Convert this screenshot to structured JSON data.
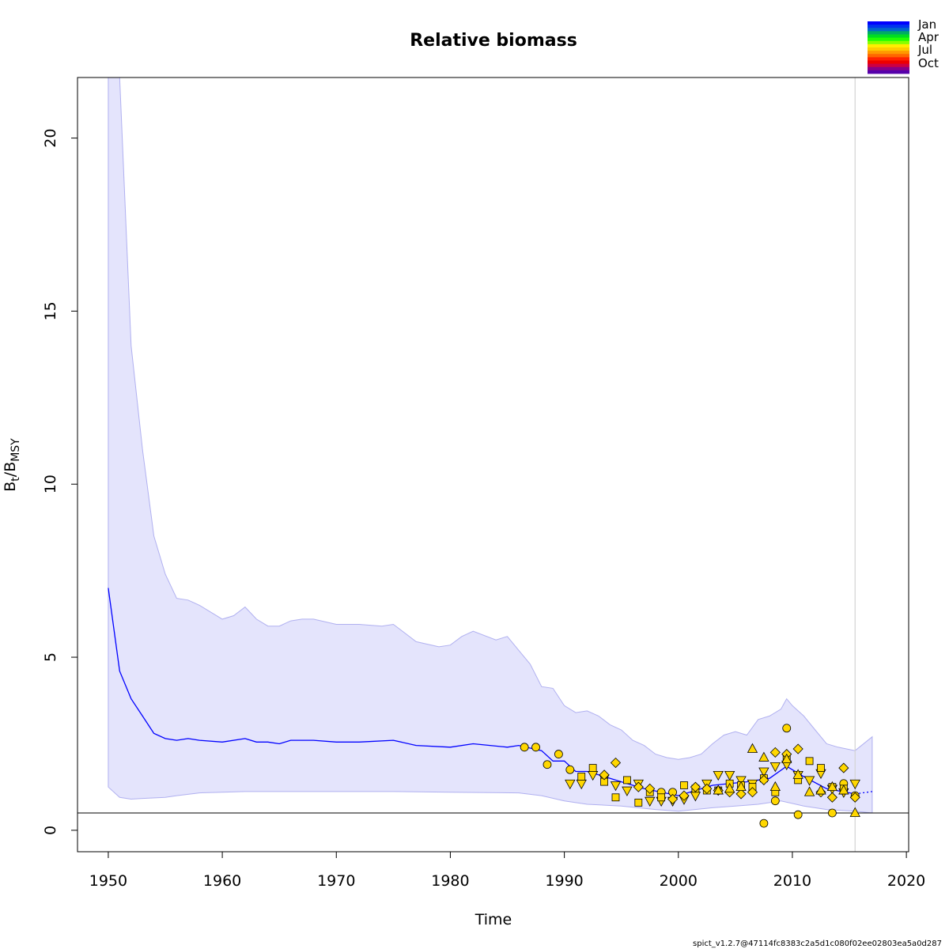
{
  "chart_data": {
    "type": "line",
    "title": "Relative biomass",
    "xlabel": "Time",
    "ylabel": {
      "main": "B",
      "sub1": "t",
      "mid": "/B",
      "sub2": "MSY"
    },
    "xlim": [
      1947.3,
      2020.2
    ],
    "ylim": [
      -0.62,
      21.75
    ],
    "xticks": [
      1950,
      1960,
      1970,
      1980,
      1990,
      2000,
      2010,
      2020
    ],
    "yticks": [
      0,
      5,
      10,
      15,
      20
    ],
    "reference_line_y": 0.5,
    "vertical_line_x": 2015.5,
    "colors": {
      "estimate": "#0000ff",
      "ci_fill": "#e4e4fc",
      "ci_edge": "#b0b0f0",
      "points": "#ffd700",
      "refline": "#000000",
      "vline": "#d3d3d3"
    },
    "estimate": {
      "x": [
        1950,
        1951,
        1952,
        1953,
        1954,
        1955,
        1956,
        1957,
        1958,
        1960,
        1962,
        1963,
        1964,
        1965,
        1966,
        1968,
        1970,
        1972,
        1975,
        1977,
        1980,
        1982,
        1985,
        1986,
        1988,
        1989,
        1990,
        1991,
        1992,
        1993,
        1995,
        1997,
        2000,
        2003,
        2006,
        2008,
        2009.5,
        2011,
        2013,
        2015.5
      ],
      "y": [
        7.0,
        4.6,
        3.8,
        3.3,
        2.8,
        2.65,
        2.6,
        2.65,
        2.6,
        2.55,
        2.65,
        2.55,
        2.55,
        2.5,
        2.6,
        2.6,
        2.55,
        2.55,
        2.6,
        2.45,
        2.4,
        2.5,
        2.4,
        2.45,
        2.3,
        2.0,
        2.0,
        1.7,
        1.7,
        1.6,
        1.4,
        1.2,
        1.0,
        1.3,
        1.4,
        1.5,
        1.85,
        1.55,
        1.2,
        1.05
      ]
    },
    "forecast": {
      "x": [
        2015.5,
        2017
      ],
      "y": [
        1.05,
        1.12
      ]
    },
    "ci_upper": {
      "x": [
        1950,
        1951,
        1952,
        1953,
        1954,
        1955,
        1956,
        1957,
        1958,
        1959,
        1960,
        1961,
        1962,
        1963,
        1964,
        1965,
        1966,
        1967,
        1968,
        1970,
        1972,
        1974,
        1975,
        1976,
        1977,
        1979,
        1980,
        1981,
        1982,
        1984,
        1985,
        1986,
        1987,
        1988,
        1989,
        1990,
        1991,
        1992,
        1993,
        1994,
        1995,
        1996,
        1997,
        1998,
        1999,
        2000,
        2001,
        2002,
        2003,
        2004,
        2005,
        2006,
        2007,
        2008,
        2009,
        2009.5,
        2010,
        2011,
        2012,
        2013,
        2014,
        2015.5,
        2017
      ],
      "y": [
        21.75,
        21.75,
        14.0,
        11.0,
        8.5,
        7.4,
        6.7,
        6.65,
        6.5,
        6.3,
        6.1,
        6.2,
        6.45,
        6.1,
        5.9,
        5.9,
        6.05,
        6.1,
        6.1,
        5.95,
        5.95,
        5.9,
        5.95,
        5.7,
        5.45,
        5.3,
        5.35,
        5.6,
        5.75,
        5.5,
        5.6,
        5.2,
        4.8,
        4.15,
        4.1,
        3.6,
        3.4,
        3.45,
        3.3,
        3.05,
        2.9,
        2.6,
        2.45,
        2.2,
        2.1,
        2.05,
        2.1,
        2.2,
        2.5,
        2.75,
        2.85,
        2.75,
        3.2,
        3.3,
        3.5,
        3.8,
        3.6,
        3.3,
        2.9,
        2.5,
        2.4,
        2.3,
        2.7
      ]
    },
    "ci_lower": {
      "x": [
        1950,
        1951,
        1952,
        1953,
        1955,
        1956,
        1958,
        1960,
        1962,
        1965,
        1970,
        1975,
        1980,
        1986,
        1988,
        1990,
        1992,
        1995,
        1998,
        2000,
        2003,
        2005,
        2007,
        2009,
        2011,
        2013,
        2015.5,
        2017
      ],
      "y": [
        1.25,
        0.95,
        0.9,
        0.92,
        0.95,
        1.0,
        1.08,
        1.1,
        1.12,
        1.12,
        1.12,
        1.12,
        1.1,
        1.08,
        1.0,
        0.85,
        0.75,
        0.7,
        0.6,
        0.55,
        0.65,
        0.7,
        0.75,
        0.85,
        0.7,
        0.6,
        0.55,
        0.5
      ]
    },
    "series": [
      {
        "marker": "circle",
        "points": [
          [
            1986.5,
            2.4
          ],
          [
            1987.5,
            2.4
          ],
          [
            1988.5,
            1.9
          ],
          [
            1989.5,
            2.2
          ],
          [
            1990.5,
            1.75
          ],
          [
            1998.5,
            1.1
          ],
          [
            1999.5,
            1.1
          ],
          [
            2007.5,
            0.2
          ],
          [
            2008.5,
            0.85
          ],
          [
            2009.5,
            2.95
          ],
          [
            2010.5,
            0.45
          ],
          [
            2013.5,
            0.5
          ],
          [
            2014.5,
            1.35
          ],
          [
            2015.5,
            1.0
          ]
        ]
      },
      {
        "marker": "triangle-down",
        "points": [
          [
            1990.5,
            1.35
          ],
          [
            1991.5,
            1.35
          ],
          [
            1992.5,
            1.6
          ],
          [
            1993.5,
            1.5
          ],
          [
            1994.5,
            1.3
          ],
          [
            1995.5,
            1.15
          ],
          [
            1996.5,
            1.35
          ],
          [
            1997.5,
            0.85
          ],
          [
            1998.5,
            0.85
          ],
          [
            1999.5,
            0.85
          ],
          [
            2000.5,
            0.9
          ],
          [
            2001.5,
            1.0
          ],
          [
            2002.5,
            1.35
          ],
          [
            2003.5,
            1.6
          ],
          [
            2004.5,
            1.6
          ],
          [
            2005.5,
            1.45
          ],
          [
            2006.5,
            1.35
          ],
          [
            2007.5,
            1.7
          ],
          [
            2008.5,
            1.85
          ],
          [
            2009.5,
            1.9
          ],
          [
            2010.5,
            1.6
          ],
          [
            2011.5,
            1.45
          ],
          [
            2012.5,
            1.65
          ],
          [
            2013.5,
            1.2
          ],
          [
            2014.5,
            1.1
          ],
          [
            2015.5,
            1.35
          ]
        ]
      },
      {
        "marker": "square",
        "points": [
          [
            1991.5,
            1.55
          ],
          [
            1992.5,
            1.8
          ],
          [
            1993.5,
            1.4
          ],
          [
            1994.5,
            0.95
          ],
          [
            1995.5,
            1.45
          ],
          [
            1996.5,
            0.8
          ],
          [
            1997.5,
            1.1
          ],
          [
            1998.5,
            0.95
          ],
          [
            2000.5,
            1.3
          ],
          [
            2001.5,
            1.2
          ],
          [
            2002.5,
            1.15
          ],
          [
            2003.5,
            1.15
          ],
          [
            2004.5,
            1.35
          ],
          [
            2005.5,
            1.3
          ],
          [
            2006.5,
            1.25
          ],
          [
            2007.5,
            1.5
          ],
          [
            2008.5,
            1.1
          ],
          [
            2009.5,
            2.1
          ],
          [
            2010.5,
            1.45
          ],
          [
            2011.5,
            2.0
          ],
          [
            2012.5,
            1.8
          ],
          [
            2013.5,
            1.25
          ],
          [
            2014.5,
            1.2
          ]
        ]
      },
      {
        "marker": "diamond",
        "points": [
          [
            1993.5,
            1.6
          ],
          [
            1994.5,
            1.95
          ],
          [
            1996.5,
            1.25
          ],
          [
            1997.5,
            1.2
          ],
          [
            1999.5,
            0.9
          ],
          [
            2000.5,
            1.0
          ],
          [
            2001.5,
            1.25
          ],
          [
            2002.5,
            1.2
          ],
          [
            2003.5,
            1.15
          ],
          [
            2004.5,
            1.1
          ],
          [
            2005.5,
            1.05
          ],
          [
            2006.5,
            1.1
          ],
          [
            2007.5,
            1.45
          ],
          [
            2008.5,
            2.25
          ],
          [
            2009.5,
            2.2
          ],
          [
            2010.5,
            2.35
          ],
          [
            2012.5,
            1.1
          ],
          [
            2013.5,
            0.95
          ],
          [
            2014.5,
            1.8
          ],
          [
            2015.5,
            0.95
          ]
        ]
      },
      {
        "marker": "triangle-up",
        "points": [
          [
            2003.5,
            1.15
          ],
          [
            2004.5,
            1.2
          ],
          [
            2005.5,
            1.25
          ],
          [
            2006.5,
            2.35
          ],
          [
            2007.5,
            2.1
          ],
          [
            2008.5,
            1.25
          ],
          [
            2009.5,
            2.05
          ],
          [
            2010.5,
            1.6
          ],
          [
            2011.5,
            1.1
          ],
          [
            2012.5,
            1.15
          ],
          [
            2013.5,
            1.25
          ],
          [
            2014.5,
            1.15
          ],
          [
            2015.5,
            0.5
          ]
        ]
      }
    ],
    "legend": {
      "labels": [
        "Jan",
        "Apr",
        "Jul",
        "Oct"
      ],
      "colors": [
        "#0000ff",
        "#0033ee",
        "#0066cc",
        "#00aa66",
        "#00dd22",
        "#22ff00",
        "#88ff00",
        "#ffee00",
        "#ffcc00",
        "#ff9900",
        "#ff6600",
        "#ff2200",
        "#ee0000",
        "#cc0044",
        "#880088",
        "#5500aa"
      ],
      "position": "top-right"
    }
  },
  "footer": "spict_v1.2.7@47114fc8383c2a5d1c080f02ee02803ea5a0d287"
}
